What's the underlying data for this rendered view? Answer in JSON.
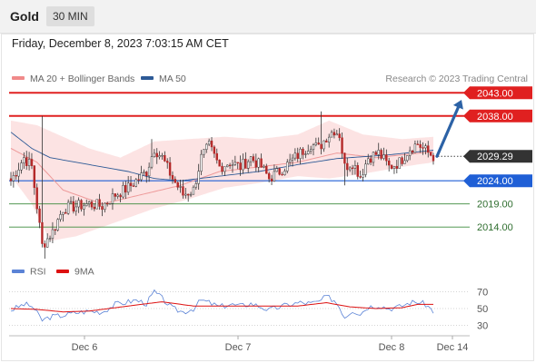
{
  "header": {
    "title": "Gold",
    "timeframe": "30 MIN"
  },
  "datetime": "Friday, December 8, 2023 7:03:15 AM CET",
  "legend_top": [
    {
      "label": "MA 20 + Bollinger Bands",
      "color": "#f08a8a"
    },
    {
      "label": "MA 50",
      "color": "#2d5a96"
    }
  ],
  "credit": "Research © 2023 Trading Central",
  "legend_bottom": [
    {
      "label": "RSI",
      "color": "#5b83d6"
    },
    {
      "label": "9MA",
      "color": "#dd1111"
    }
  ],
  "colors": {
    "resistance": "#e02020",
    "support": "#1f5fd6",
    "target": "#3a8a3a",
    "up_candle": "#ffffff",
    "down_candle": "#b42828",
    "wick": "#333333",
    "band_fill": "#fbd9d9",
    "ma20": "#ee9a9a",
    "ma50": "#2d5a96",
    "arrow": "#2c62a6",
    "price_tag": "#333333"
  },
  "chart_data": [
    {
      "type": "candlestick",
      "ylim": [
        2006,
        2050
      ],
      "x_ticks": [
        "Dec 6",
        "Dec 7",
        "Dec 8",
        "Dec 14"
      ],
      "current_price": 2029.29,
      "price_tag": "2029.29",
      "levels": [
        {
          "value": 2043.0,
          "label": "2043.00",
          "kind": "resistance"
        },
        {
          "value": 2038.0,
          "label": "2038.00",
          "kind": "resistance"
        },
        {
          "value": 2024.0,
          "label": "2024.00",
          "kind": "pivot"
        },
        {
          "value": 2019.0,
          "label": "2019.00",
          "kind": "support"
        },
        {
          "value": 2014.0,
          "label": "2014.00",
          "kind": "support"
        }
      ],
      "arrow": {
        "from": 2029.29,
        "to": 2041.5
      },
      "close_path": [
        [
          0,
          2024
        ],
        [
          5,
          2029
        ],
        [
          8,
          2027
        ],
        [
          12,
          2010
        ],
        [
          16,
          2013
        ],
        [
          20,
          2018
        ],
        [
          25,
          2018.5
        ],
        [
          30,
          2019
        ],
        [
          35,
          2018.5
        ],
        [
          40,
          2021
        ],
        [
          45,
          2022.5
        ],
        [
          48,
          2024
        ],
        [
          52,
          2026
        ],
        [
          55,
          2031
        ],
        [
          58,
          2029
        ],
        [
          62,
          2024.5
        ],
        [
          66,
          2021
        ],
        [
          70,
          2022
        ],
        [
          73,
          2029
        ],
        [
          76,
          2031.5
        ],
        [
          80,
          2027
        ],
        [
          84,
          2028
        ],
        [
          88,
          2027
        ],
        [
          92,
          2029
        ],
        [
          96,
          2027
        ],
        [
          99,
          2024.5
        ],
        [
          103,
          2026
        ],
        [
          107,
          2028
        ],
        [
          111,
          2030
        ],
        [
          115,
          2032
        ],
        [
          118,
          2031
        ],
        [
          121,
          2033.5
        ],
        [
          124,
          2035
        ],
        [
          126,
          2034
        ],
        [
          128,
          2027
        ],
        [
          131,
          2028
        ],
        [
          134,
          2025
        ],
        [
          137,
          2029
        ],
        [
          141,
          2030
        ],
        [
          145,
          2027
        ],
        [
          149,
          2028
        ],
        [
          153,
          2031
        ],
        [
          156,
          2032
        ],
        [
          159,
          2030.5
        ],
        [
          162,
          2029.3
        ]
      ],
      "anchors": [
        [
          12,
          2038
        ],
        [
          13,
          2006.5
        ],
        [
          54,
          2033
        ],
        [
          119,
          2039
        ],
        [
          128,
          2023
        ]
      ],
      "ma20_path": [
        [
          0,
          2031
        ],
        [
          10,
          2028
        ],
        [
          20,
          2022
        ],
        [
          35,
          2019
        ],
        [
          50,
          2021
        ],
        [
          65,
          2023
        ],
        [
          80,
          2026
        ],
        [
          95,
          2027
        ],
        [
          110,
          2028
        ],
        [
          125,
          2030
        ],
        [
          140,
          2029
        ],
        [
          162,
          2030.3
        ]
      ],
      "ma50_path": [
        [
          0,
          2034.5
        ],
        [
          8,
          2031
        ],
        [
          15,
          2029
        ],
        [
          30,
          2027.5
        ],
        [
          45,
          2026
        ],
        [
          55,
          2024.5
        ],
        [
          65,
          2024
        ],
        [
          80,
          2025
        ],
        [
          95,
          2026
        ],
        [
          110,
          2027.5
        ],
        [
          125,
          2028.8
        ],
        [
          145,
          2029.6
        ],
        [
          162,
          2030.6
        ]
      ],
      "bb_upper_path": [
        [
          0,
          2037
        ],
        [
          10,
          2036
        ],
        [
          18,
          2034
        ],
        [
          30,
          2031
        ],
        [
          42,
          2029
        ],
        [
          55,
          2032.5
        ],
        [
          68,
          2033
        ],
        [
          82,
          2033.5
        ],
        [
          95,
          2033
        ],
        [
          110,
          2034
        ],
        [
          122,
          2037
        ],
        [
          135,
          2034
        ],
        [
          150,
          2033
        ],
        [
          162,
          2033.5
        ]
      ],
      "bb_lower_path": [
        [
          0,
          2025
        ],
        [
          8,
          2019
        ],
        [
          15,
          2011
        ],
        [
          25,
          2012
        ],
        [
          40,
          2015
        ],
        [
          55,
          2018
        ],
        [
          68,
          2020
        ],
        [
          82,
          2022.5
        ],
        [
          95,
          2023.5
        ],
        [
          110,
          2025
        ],
        [
          122,
          2024.5
        ],
        [
          135,
          2025.5
        ],
        [
          150,
          2027
        ],
        [
          162,
          2028
        ]
      ]
    },
    {
      "type": "line",
      "ylim": [
        20,
        80
      ],
      "y_ticks": [
        70,
        50,
        30
      ],
      "series": [
        {
          "name": "RSI",
          "values": [
            [
              0,
              48
            ],
            [
              5,
              55
            ],
            [
              8,
              53
            ],
            [
              12,
              36
            ],
            [
              15,
              40
            ],
            [
              20,
              42
            ],
            [
              25,
              45
            ],
            [
              30,
              47
            ],
            [
              35,
              46
            ],
            [
              40,
              55
            ],
            [
              45,
              58
            ],
            [
              48,
              60
            ],
            [
              52,
              56
            ],
            [
              55,
              70
            ],
            [
              58,
              62
            ],
            [
              62,
              50
            ],
            [
              66,
              46
            ],
            [
              70,
              50
            ],
            [
              73,
              60
            ],
            [
              76,
              57
            ],
            [
              80,
              52
            ],
            [
              84,
              55
            ],
            [
              88,
              53
            ],
            [
              92,
              56
            ],
            [
              96,
              52
            ],
            [
              99,
              48
            ],
            [
              103,
              52
            ],
            [
              107,
              55
            ],
            [
              111,
              57
            ],
            [
              115,
              56
            ],
            [
              118,
              58
            ],
            [
              121,
              64
            ],
            [
              124,
              60
            ],
            [
              126,
              52
            ],
            [
              128,
              40
            ],
            [
              131,
              48
            ],
            [
              134,
              44
            ],
            [
              137,
              52
            ],
            [
              141,
              54
            ],
            [
              145,
              50
            ],
            [
              149,
              52
            ],
            [
              153,
              57
            ],
            [
              156,
              58
            ],
            [
              159,
              55
            ],
            [
              162,
              47
            ]
          ]
        },
        {
          "name": "9MA",
          "values": [
            [
              0,
              50
            ],
            [
              10,
              49
            ],
            [
              20,
              46
            ],
            [
              30,
              47
            ],
            [
              40,
              51
            ],
            [
              50,
              55
            ],
            [
              58,
              58
            ],
            [
              70,
              53
            ],
            [
              80,
              53
            ],
            [
              95,
              53
            ],
            [
              110,
              53
            ],
            [
              121,
              57
            ],
            [
              130,
              52
            ],
            [
              140,
              50
            ],
            [
              150,
              51
            ],
            [
              156,
              55
            ],
            [
              162,
              55
            ]
          ]
        }
      ]
    }
  ]
}
